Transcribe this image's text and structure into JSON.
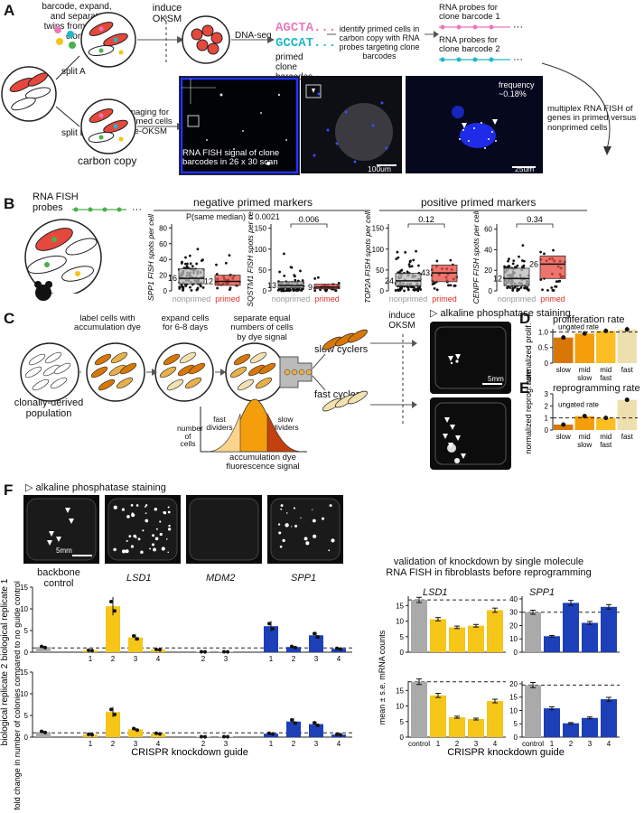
{
  "panelA": {
    "letter": "A",
    "intro_text": "barcode, expand, and separate twins from same clone",
    "induce": "induce OKSM",
    "split_a": "split A",
    "split_b": "split B",
    "carbon_copy": "carbon copy",
    "dna_seq": "DNA-seq",
    "barcode1": "AGCTA...",
    "barcode2": "GCCAT...",
    "primed_barcodes": "primed clone barcodes",
    "identify_text": "identify primed cells in carbon copy with RNA probes targeting clone barcodes",
    "probes1": "RNA probes for clone barcode 1",
    "probes2": "RNA probes for clone barcode 2",
    "imaging_text": "imaging for primed cells pre-OKSM",
    "fish_caption": "RNA FISH signal of clone barcodes in 26 x 30 scan",
    "scale_100": "100um",
    "frequency": "frequency ~0.18%",
    "scale_25": "25um",
    "multiplex_text": "multiplex RNA FISH of genes in primed versus nonprimed cells"
  },
  "panelB": {
    "letter": "B",
    "probes_label": "RNA FISH probes",
    "negative_header": "negative primed markers",
    "positive_header": "positive primed markers",
    "xcat_nonprimed": "nonprimed",
    "xcat_primed": "primed",
    "p_same_median": "P(same median) = 0.0021",
    "plots": [
      {
        "gene": "SPP1",
        "ylabel": "SPP1 FISH spots per cell",
        "ticks": [
          "0",
          "20",
          "40",
          "60",
          "80"
        ],
        "ymax": 85,
        "n_np": "16",
        "n_p": "12",
        "pval": "",
        "median_np": 16,
        "q1_np": 9,
        "q3_np": 28,
        "median_p": 12,
        "q1_p": 7,
        "q3_p": 20
      },
      {
        "gene": "SQSTM1",
        "ylabel": "SQSTM1 FISH spots per cell",
        "ticks": [
          "0",
          "50",
          "100",
          "150"
        ],
        "ymax": 160,
        "n_np": "13",
        "n_p": "9",
        "pval": "0.006",
        "median_np": 13,
        "q1_np": 7,
        "q3_np": 22,
        "median_p": 9,
        "q1_p": 5,
        "q3_p": 16
      },
      {
        "gene": "TOP2A",
        "ylabel": "TOP2A FISH spots per cell",
        "ticks": [
          "0",
          "50",
          "100",
          "150"
        ],
        "ymax": 160,
        "n_np": "24",
        "n_p": "43",
        "pval": "0.12",
        "median_np": 24,
        "q1_np": 12,
        "q3_np": 42,
        "median_p": 43,
        "q1_p": 22,
        "q3_p": 62
      },
      {
        "gene": "CENPF",
        "ylabel": "CENPF FISH spots per cell",
        "ticks": [
          "0",
          "20",
          "40",
          "60"
        ],
        "ymax": 65,
        "n_np": "12",
        "n_p": "26",
        "pval": "0.34",
        "median_np": 12,
        "q1_np": 5,
        "q3_np": 22,
        "median_p": 26,
        "q1_p": 12,
        "q3_p": 34
      }
    ]
  },
  "panelC": {
    "letter": "C",
    "step1": "label cells with accumulation dye",
    "step2": "expand cells for 6-8 days",
    "step3": "separate equal numbers of cells by dye signal",
    "induce": "induce OKSM",
    "population": "clonally-derived population",
    "slow_cyclers": "slow cyclers",
    "fast_cyclers": "fast cyclers",
    "fast_dividers": "fast dividers",
    "slow_dividers": "slow dividers",
    "number_of_cells": "number of cells",
    "dye_xlabel": "accumulation dye fluorescence signal",
    "ap_stain": "alkaline phosphatase staining",
    "scale_5mm": "5mm"
  },
  "panelD": {
    "letter": "D",
    "title": "proliferation rate",
    "ylabel": "normalized prolif. rate",
    "ungated": "ungated rate",
    "ticks": [
      "0",
      "0.5",
      "1.0"
    ],
    "categories": [
      "slow",
      "mid slow",
      "mid fast",
      "fast"
    ],
    "values": [
      0.82,
      0.95,
      1.03,
      1.08
    ]
  },
  "panelE": {
    "letter": "E",
    "title": "reprogramming rate",
    "ylabel": "normalized reprog. rate",
    "ungated": "ungated rate",
    "ticks": [
      "0",
      "1",
      "2",
      "3"
    ],
    "categories": [
      "slow",
      "mid slow",
      "mid fast",
      "fast"
    ],
    "values": [
      0.45,
      1.15,
      1.0,
      2.5
    ]
  },
  "panelF": {
    "letter": "F",
    "ap_stain": "alkaline phosphatase staining",
    "scale_5mm": "5mm",
    "group_labels": [
      "backbone control",
      "LSD1",
      "MDM2",
      "SPP1"
    ],
    "rep1": "biological replicate 1",
    "rep2": "biological replicate 2",
    "ylabel": "fold change in number of colonies compared to no guide control",
    "xlabel": "CRISPR knockdown guide",
    "validation_title": "validation of knockdown by single molecule RNA FISH in fibroblasts before reprogramming",
    "mrna_ylabel": "mean ± s.e. mRNA counts",
    "genes": [
      "LSD1",
      "SPP1"
    ],
    "control": "control",
    "guides": [
      "1",
      "2",
      "3",
      "4"
    ]
  },
  "chart_data": [
    {
      "type": "bar",
      "title": "proliferation rate",
      "ylabel": "normalized prolif. rate",
      "categories": [
        "slow",
        "mid slow",
        "mid fast",
        "fast"
      ],
      "values": [
        0.82,
        0.95,
        1.03,
        1.08
      ],
      "ylim": [
        0,
        1.1
      ]
    },
    {
      "type": "bar",
      "title": "reprogramming rate",
      "ylabel": "normalized reprog. rate",
      "categories": [
        "slow",
        "mid slow",
        "mid fast",
        "fast"
      ],
      "values": [
        0.45,
        1.15,
        1.0,
        2.5
      ],
      "ylim": [
        0,
        3
      ]
    },
    {
      "type": "bar",
      "title": "biological replicate 1",
      "categories": [
        "control",
        "LSD1 1",
        "LSD1 2",
        "LSD1 3",
        "LSD1 4",
        "MDM2 2",
        "MDM2 3",
        "SPP1 1",
        "SPP1 2",
        "SPP1 3",
        "SPP1 4"
      ],
      "values": [
        1.2,
        0.4,
        10.6,
        3.4,
        0.6,
        0.1,
        0.1,
        6.0,
        1.2,
        3.9,
        0.8
      ],
      "ylim": [
        0,
        15
      ]
    },
    {
      "type": "bar",
      "title": "biological replicate 2",
      "categories": [
        "control",
        "LSD1 1",
        "LSD1 2",
        "LSD1 3",
        "LSD1 4",
        "MDM2 2",
        "MDM2 3",
        "SPP1 1",
        "SPP1 2",
        "SPP1 3",
        "SPP1 4"
      ],
      "values": [
        1.2,
        0.6,
        5.8,
        1.8,
        0.8,
        0.1,
        0.1,
        0.8,
        3.6,
        3.0,
        0.6
      ],
      "ylim": [
        0,
        15
      ]
    },
    {
      "type": "bar",
      "title": "LSD1",
      "categories": [
        "control",
        "1",
        "2",
        "3",
        "4"
      ],
      "series": [
        {
          "name": "replicate 1",
          "values": [
            16.8,
            10.6,
            8.0,
            8.5,
            13.5
          ]
        },
        {
          "name": "replicate 2",
          "values": [
            17.8,
            13.4,
            6.4,
            5.8,
            11.6
          ]
        }
      ]
    },
    {
      "type": "bar",
      "title": "SPP1",
      "categories": [
        "control",
        "1",
        "2",
        "3",
        "4"
      ],
      "series": [
        {
          "name": "replicate 1",
          "values": [
            30,
            12,
            37,
            22,
            34
          ]
        },
        {
          "name": "replicate 2",
          "values": [
            19.5,
            10.8,
            5.2,
            7.2,
            14.2
          ]
        }
      ]
    }
  ],
  "colors": {
    "orange_dark": "#d97706",
    "orange": "#f59e0b",
    "orange_light": "#fbbf24",
    "tan": "#eedfae",
    "yellow": "#f5c518",
    "blue": "#1d3fb8",
    "gray": "#aaaaaa",
    "red": "#e5483c",
    "primed_red": "#e02f2f"
  }
}
